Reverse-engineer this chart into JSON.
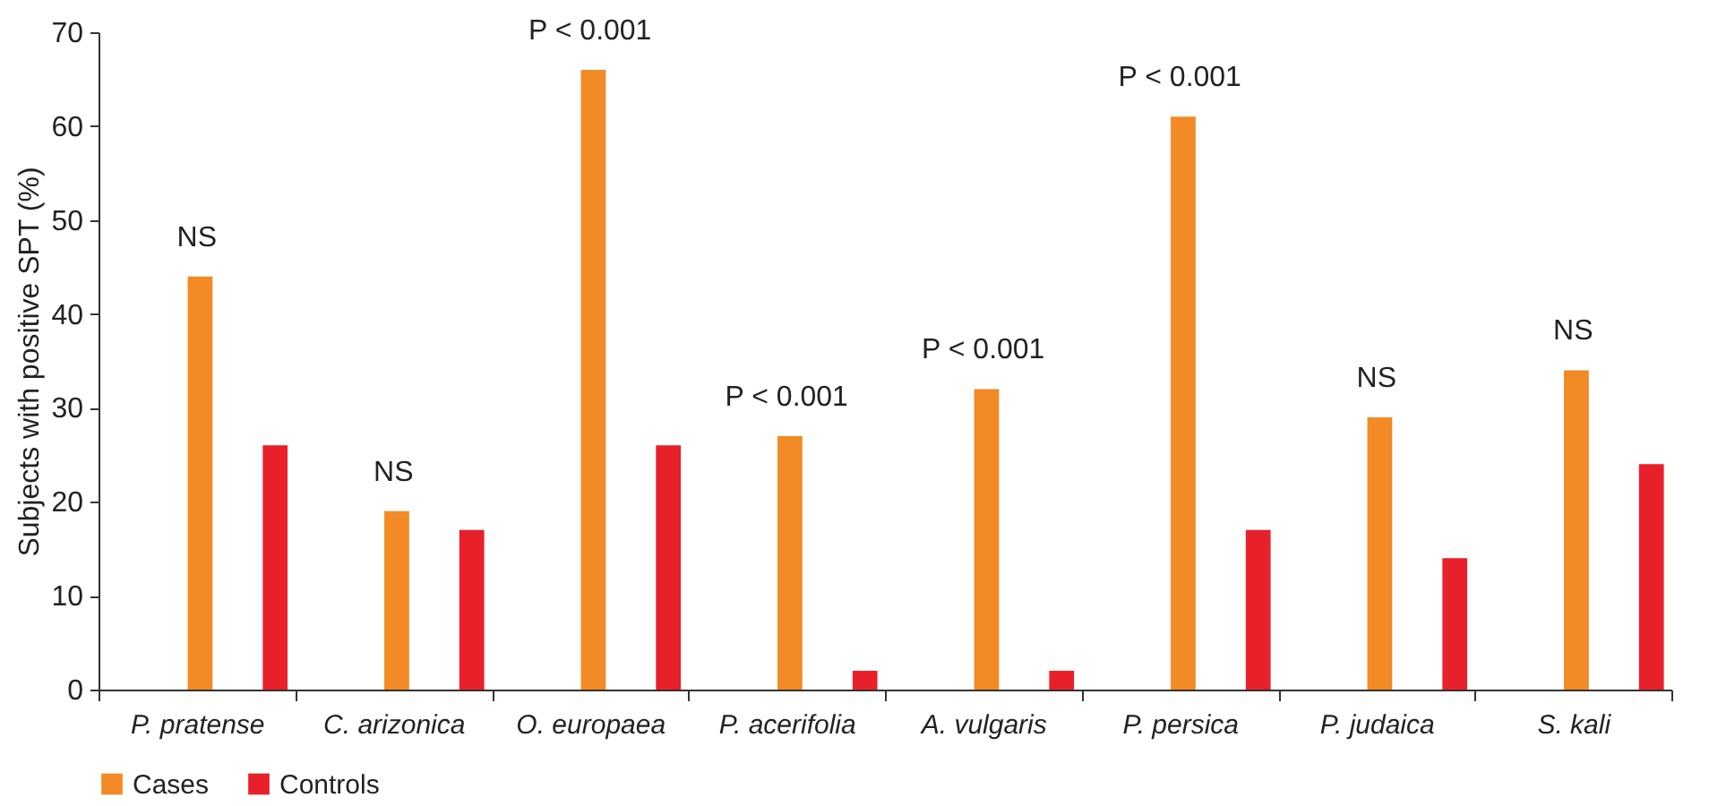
{
  "chart_data": {
    "type": "bar",
    "ylabel": "Subjects with positive SPT (%)",
    "categories": [
      "P. pratense",
      "C. arizonica",
      "O. europaea",
      "P. acerifolia",
      "A. vulgaris",
      "P. persica",
      "P. judaica",
      "S. kali"
    ],
    "series": [
      {
        "name": "Cases",
        "color": "#f28a25",
        "values": [
          44,
          19,
          66,
          27,
          32,
          61,
          29,
          34
        ]
      },
      {
        "name": "Controls",
        "color": "#e8202a",
        "values": [
          26,
          17,
          26,
          2,
          2,
          17,
          14,
          24
        ]
      }
    ],
    "ylim": [
      0,
      70
    ],
    "yticks": [
      0,
      10,
      20,
      30,
      40,
      50,
      60,
      70
    ],
    "grid": false,
    "legend": "bottom",
    "annotations": [
      {
        "text": "NS",
        "x": "P. pratense",
        "y": 44
      },
      {
        "text": "NS",
        "x": "C. arizonica",
        "y": 19
      },
      {
        "text": "P < 0.001",
        "x": "O. europaea",
        "y": 66
      },
      {
        "text": "P < 0.001",
        "x": "P. acerifolia",
        "y": 27
      },
      {
        "text": "P < 0.001",
        "x": "A. vulgaris",
        "y": 32
      },
      {
        "text": "P < 0.001",
        "x": "P. persica",
        "y": 61
      },
      {
        "text": "NS",
        "x": "P. judaica",
        "y": 29
      },
      {
        "text": "NS",
        "x": "S. kali",
        "y": 34
      }
    ]
  }
}
